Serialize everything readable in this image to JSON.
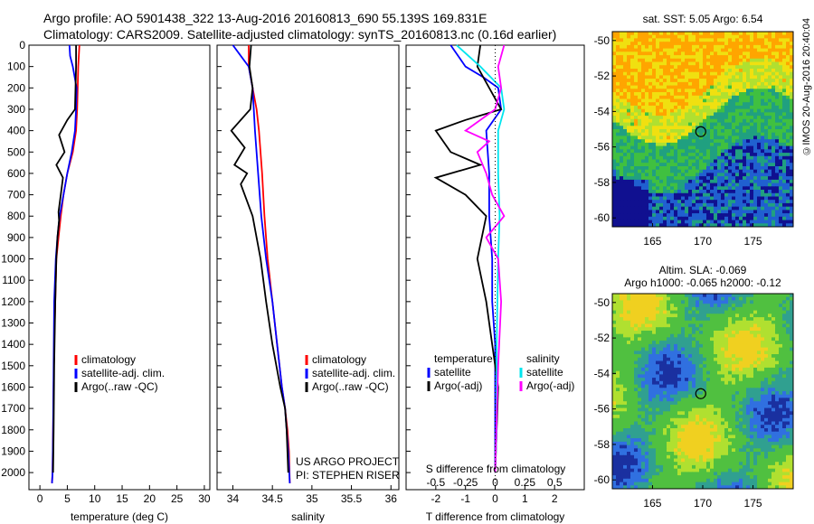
{
  "header": {
    "line1": "Argo profile: AO 5901438_322 13-Aug-2016 20160813_690 55.139S 169.831E",
    "line2": "Climatology: CARS2009. Satellite-adjusted climatology: synTS_20160813.nc (0.16d earlier)"
  },
  "watermark": "©IMOS 20-Aug-2016 20:40:04",
  "colors": {
    "climatology": "#ff0000",
    "satellite": "#0000ff",
    "argo": "#000000",
    "sal_satellite": "#00e5ee",
    "sal_argo": "#ff00ff"
  },
  "chart_data": [
    {
      "type": "line",
      "name": "temperature-profile",
      "xlabel": "temperature (deg C)",
      "ylabel": "",
      "xlim": [
        -2,
        31
      ],
      "ylim": [
        2080,
        0
      ],
      "xticks": [
        0,
        5,
        10,
        15,
        20,
        25,
        30
      ],
      "xtick_labels": [
        "0",
        "5",
        "10",
        "15",
        "20",
        "25",
        "30"
      ],
      "yticks": [
        0,
        100,
        200,
        300,
        400,
        500,
        600,
        700,
        800,
        900,
        1000,
        1100,
        1200,
        1300,
        1400,
        1500,
        1600,
        1700,
        1800,
        1900,
        2000
      ],
      "ytick_labels": [
        "0",
        "100",
        "200",
        "300",
        "400",
        "500",
        "600",
        "700",
        "800",
        "900",
        "1000",
        "1100",
        "1200",
        "1300",
        "1400",
        "1500",
        "1600",
        "1700",
        "1800",
        "1900",
        "2000"
      ],
      "legend": [
        "climatology",
        "satellite-adj. clim.",
        "Argo(..raw -QC)"
      ],
      "legend_position": "lower-middle",
      "series": [
        {
          "key": "climatology",
          "x": [
            7.2,
            7.0,
            6.9,
            6.8,
            6.6,
            6.0,
            5.0,
            4.3,
            3.8,
            3.4,
            3.0,
            2.8,
            2.6,
            2.5,
            2.4,
            2.3,
            2.2
          ],
          "y": [
            0,
            100,
            200,
            300,
            400,
            500,
            600,
            700,
            800,
            900,
            1000,
            1200,
            1400,
            1600,
            1800,
            2000,
            2050
          ]
        },
        {
          "key": "satellite",
          "x": [
            5.4,
            5.5,
            6.0,
            6.7,
            6.6,
            6.4,
            5.8,
            5.0,
            4.3,
            3.6,
            3.2,
            2.9,
            2.6,
            2.5,
            2.4,
            2.3,
            2.2
          ],
          "y": [
            0,
            50,
            100,
            200,
            300,
            400,
            500,
            600,
            700,
            800,
            900,
            1000,
            1200,
            1500,
            1800,
            2000,
            2050
          ]
        },
        {
          "key": "argo",
          "x": [
            6.6,
            6.6,
            6.5,
            6.4,
            5.0,
            3.5,
            4.5,
            3.0,
            4.2,
            3.8,
            3.4,
            3.5,
            3.2,
            3.0,
            2.8,
            2.6,
            2.5,
            2.4
          ],
          "y": [
            0,
            100,
            200,
            300,
            350,
            420,
            500,
            560,
            620,
            700,
            780,
            820,
            900,
            1000,
            1200,
            1500,
            1800,
            2000
          ]
        }
      ]
    },
    {
      "type": "line",
      "name": "salinity-profile",
      "xlabel": "salinity",
      "ylabel": "",
      "xlim": [
        33.8,
        36.1
      ],
      "ylim": [
        2080,
        0
      ],
      "xticks": [
        34,
        34.5,
        35,
        35.5,
        36
      ],
      "xtick_labels": [
        "34",
        "34.5",
        "35",
        "35.5",
        "36"
      ],
      "legend": [
        "climatology",
        "satellite-adj. clim.",
        "Argo(..raw -QC)"
      ],
      "legend_position": "lower-right",
      "annotations": [
        "US ARGO PROJECT",
        "PI: STEPHEN RISER"
      ],
      "series": [
        {
          "key": "climatology",
          "x": [
            34.2,
            34.2,
            34.25,
            34.3,
            34.33,
            34.37,
            34.4,
            34.44,
            34.5,
            34.56,
            34.62,
            34.66,
            34.69,
            34.71,
            34.72
          ],
          "y": [
            0,
            100,
            200,
            300,
            400,
            600,
            800,
            1000,
            1200,
            1400,
            1600,
            1700,
            1800,
            1900,
            2050
          ]
        },
        {
          "key": "satellite",
          "x": [
            34.0,
            34.1,
            34.2,
            34.25,
            34.28,
            34.32,
            34.36,
            34.42,
            34.5,
            34.56,
            34.62,
            34.66,
            34.7,
            34.72
          ],
          "y": [
            0,
            50,
            100,
            200,
            400,
            600,
            800,
            1000,
            1200,
            1400,
            1600,
            1700,
            1900,
            2050
          ]
        },
        {
          "key": "argo",
          "x": [
            34.23,
            34.21,
            34.25,
            34.22,
            33.98,
            34.15,
            34.02,
            34.18,
            34.1,
            34.25,
            34.3,
            34.35,
            34.42,
            34.5,
            34.6,
            34.66,
            34.68,
            34.7
          ],
          "y": [
            0,
            100,
            200,
            300,
            400,
            480,
            560,
            600,
            650,
            800,
            900,
            1000,
            1200,
            1400,
            1600,
            1700,
            1800,
            2000
          ]
        }
      ]
    },
    {
      "type": "line",
      "name": "difference-profile",
      "xlabel": "T difference from climatology",
      "x2label": "S difference from climatology",
      "xlim": [
        -3,
        3
      ],
      "ylim": [
        2080,
        0
      ],
      "xticks": [
        -2,
        -1,
        0,
        1,
        2
      ],
      "xtick_labels": [
        "-2",
        "-1",
        "0",
        "1",
        "2"
      ],
      "x2ticks": [
        -0.5,
        -0.25,
        0,
        0.25,
        0.5
      ],
      "x2tick_labels": [
        "-0.5",
        "-0.25",
        "0",
        "0.25",
        "0.5"
      ],
      "legend_titles": [
        "temperature",
        "salinity"
      ],
      "legend": [
        "satellite",
        "Argo(-adj)",
        "satellite",
        "Argo(-adj)"
      ],
      "legend_position": "lower-middle",
      "series": [
        {
          "key": "t_satellite",
          "x": [
            -1.5,
            -1.0,
            -0.4,
            0.1,
            0.2,
            -0.3,
            -0.2,
            -0.2,
            -0.1,
            -0.1,
            0,
            0,
            0
          ],
          "y": [
            0,
            100,
            150,
            200,
            300,
            400,
            600,
            800,
            1000,
            1200,
            1400,
            1800,
            2000
          ]
        },
        {
          "key": "t_argo",
          "x": [
            -0.5,
            -0.6,
            -0.2,
            0.2,
            -1.0,
            -2.0,
            -1.5,
            -0.5,
            -2.0,
            -1.0,
            -0.3,
            -0.6,
            -0.3,
            -0.1,
            0.1,
            0
          ],
          "y": [
            0,
            100,
            200,
            300,
            350,
            400,
            500,
            560,
            620,
            700,
            800,
            1000,
            1200,
            1400,
            1600,
            2000
          ]
        },
        {
          "key": "s_satellite",
          "x": [
            -1.3,
            -0.5,
            0.2,
            0.3,
            0.1,
            0.1,
            0.15,
            0.1,
            0.05,
            0.05,
            0
          ],
          "y": [
            0,
            100,
            200,
            300,
            400,
            600,
            800,
            1000,
            1400,
            1800,
            2000
          ]
        },
        {
          "key": "s_argo",
          "x": [
            0.3,
            0.1,
            0.2,
            0.0,
            -1.0,
            -0.2,
            -0.6,
            -0.3,
            -0.1,
            0.3,
            -0.3,
            0.1,
            0.2,
            0.1,
            0.0
          ],
          "y": [
            0,
            100,
            200,
            300,
            400,
            450,
            500,
            600,
            700,
            800,
            900,
            1000,
            1200,
            1500,
            2000
          ]
        }
      ]
    },
    {
      "type": "heatmap",
      "name": "sst-map",
      "title": "sat. SST: 5.05 Argo: 6.54",
      "xlim": [
        161,
        179
      ],
      "ylim": [
        -60.5,
        -49.5
      ],
      "xticks": [
        165,
        170,
        175
      ],
      "xtick_labels": [
        "165",
        "170",
        "175"
      ],
      "yticks": [
        -50,
        -52,
        -54,
        -56,
        -58,
        -60
      ],
      "ytick_labels": [
        "-50",
        "-52",
        "-54",
        "-56",
        "-58",
        "-60"
      ],
      "marker": {
        "lon": 169.8,
        "lat": -55.14
      }
    },
    {
      "type": "heatmap",
      "name": "sla-map",
      "title": "Altim. SLA: -0.069",
      "subtitle": "Argo h1000: -0.065 h2000: -0.12",
      "xlim": [
        161,
        179
      ],
      "ylim": [
        -60.5,
        -49.5
      ],
      "xticks": [
        165,
        170,
        175
      ],
      "xtick_labels": [
        "165",
        "170",
        "175"
      ],
      "yticks": [
        -50,
        -52,
        -54,
        -56,
        -58,
        -60
      ],
      "ytick_labels": [
        "-50",
        "-52",
        "-54",
        "-56",
        "-58",
        "-60"
      ],
      "marker": {
        "lon": 169.8,
        "lat": -55.14
      }
    }
  ]
}
